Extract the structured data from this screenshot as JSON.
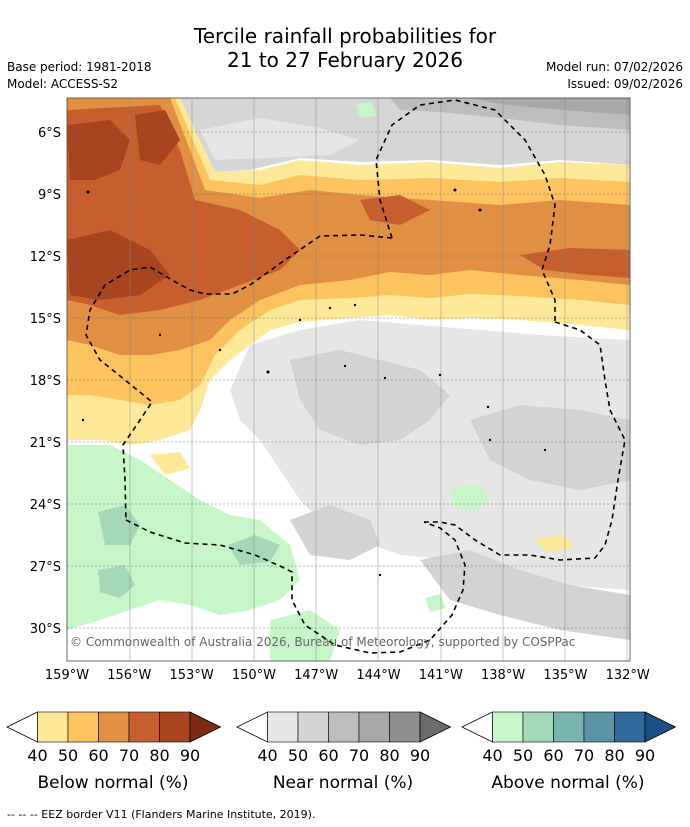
{
  "header": {
    "title_line1": "Tercile rainfall probabilities for",
    "title_line2": "21 to 27 February 2026",
    "base_period": "Base period: 1981-2018",
    "model": "Model: ACCESS-S2",
    "model_run": "Model run: 07/02/2026",
    "issued": "Issued: 09/02/2026"
  },
  "map": {
    "lon_labels": [
      "159°W",
      "156°W",
      "153°W",
      "150°W",
      "147°W",
      "144°W",
      "141°W",
      "138°W",
      "135°W",
      "132°W"
    ],
    "lat_labels": [
      "6°S",
      "9°S",
      "12°S",
      "15°S",
      "18°S",
      "21°S",
      "24°S",
      "27°S",
      "30°S"
    ],
    "copyright": "© Commonwealth of Australia 2026, Bureau of Meteorology, supported by COSPPac"
  },
  "legend": {
    "ticks": [
      "40",
      "50",
      "60",
      "70",
      "80",
      "90"
    ],
    "below_label": "Below normal (%)",
    "near_label": "Near normal (%)",
    "above_label": "Above normal (%)",
    "below_colors": [
      "#ffffff",
      "#fee999",
      "#fdc35f",
      "#e08f43",
      "#c65f2d",
      "#a8441f",
      "#7e2a12"
    ],
    "near_colors": [
      "#ffffff",
      "#e7e7e7",
      "#d3d3d3",
      "#bdbdbd",
      "#a8a8a8",
      "#8f8f8f",
      "#6b6b6b"
    ],
    "above_colors": [
      "#ffffff",
      "#c7f7c9",
      "#a4d9b8",
      "#7ab4ae",
      "#5b94a2",
      "#306a9b",
      "#1a4f85"
    ]
  },
  "footnote": "--  --  -- EEZ border V11 (Flanders Marine Institute, 2019)."
}
